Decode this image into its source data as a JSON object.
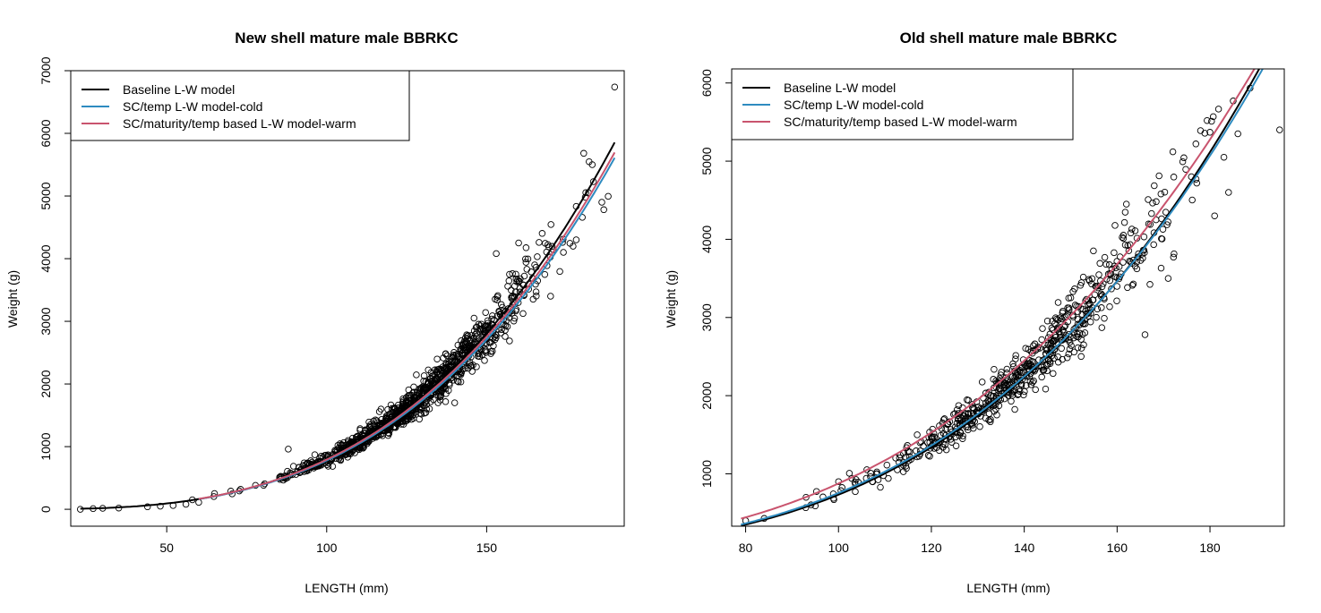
{
  "colors": {
    "baseline": "#000000",
    "cold": "#2E8BC0",
    "warm": "#C9546E",
    "points": "#000000"
  },
  "chart_data": [
    {
      "type": "scatter",
      "title": "New shell mature male BBRKC",
      "xlabel": "LENGTH (mm)",
      "ylabel": "Weight (g)",
      "xlim": [
        20,
        193
      ],
      "ylim": [
        -270,
        7000
      ],
      "xticks": [
        50,
        100,
        150
      ],
      "yticks": [
        0,
        1000,
        2000,
        3000,
        4000,
        5000,
        6000,
        7000
      ],
      "grid": false,
      "legend_position": "top-left",
      "legend": [
        "Baseline L-W model",
        "SC/temp L-W model-cold",
        "SC/maturity/temp based L-W model-warm"
      ],
      "series": [
        {
          "name": "Baseline L-W model",
          "kind": "line",
          "a": 0.000492,
          "b": 3.105,
          "x_range": [
            23,
            190
          ],
          "color_key": "baseline"
        },
        {
          "name": "SC/temp L-W model-cold",
          "kind": "line",
          "a": 0.000546,
          "b": 3.077,
          "x_range": [
            60,
            190
          ],
          "color_key": "cold"
        },
        {
          "name": "SC/maturity/temp based L-W model-warm",
          "kind": "line",
          "a": 0.000575,
          "b": 3.07,
          "x_range": [
            60,
            190
          ],
          "color_key": "warm"
        }
      ],
      "points": {
        "x_range": [
          23,
          190
        ],
        "center": 128,
        "spread": 20,
        "count": 1100,
        "noise_sd": 0.07,
        "a": 0.000492,
        "b": 3.105,
        "extras": [
          [
            23,
            0
          ],
          [
            27,
            10
          ],
          [
            30,
            15
          ],
          [
            35,
            20
          ],
          [
            44,
            40
          ],
          [
            48,
            50
          ],
          [
            52,
            60
          ],
          [
            56,
            80
          ],
          [
            60,
            110
          ],
          [
            88,
            960
          ],
          [
            190,
            6740
          ],
          [
            183,
            5500
          ],
          [
            178,
            4300
          ],
          [
            186,
            4900
          ],
          [
            174,
            4100
          ],
          [
            170,
            3400
          ],
          [
            165,
            3900
          ],
          [
            140,
            1700
          ],
          [
            153,
            4080
          ],
          [
            160,
            4250
          ]
        ]
      }
    },
    {
      "type": "scatter",
      "title": "Old shell mature male BBRKC",
      "xlabel": "LENGTH (mm)",
      "ylabel": "Weight (g)",
      "xlim": [
        77,
        196
      ],
      "ylim": [
        330,
        6180
      ],
      "xticks": [
        80,
        100,
        120,
        140,
        160,
        180
      ],
      "yticks": [
        1000,
        2000,
        3000,
        4000,
        5000,
        6000
      ],
      "grid": false,
      "legend_position": "top-left",
      "legend": [
        "Baseline L-W model",
        "SC/temp L-W model-cold",
        "SC/maturity/temp based L-W model-warm"
      ],
      "series": [
        {
          "name": "Baseline L-W model",
          "kind": "line",
          "a": 0.00018,
          "b": 3.305,
          "x_range": [
            79,
            196
          ],
          "color_key": "baseline"
        },
        {
          "name": "SC/temp L-W model-cold",
          "kind": "line",
          "a": 0.00025,
          "b": 3.24,
          "x_range": [
            79,
            196
          ],
          "color_key": "cold"
        },
        {
          "name": "SC/maturity/temp based L-W model-warm",
          "kind": "line",
          "a": 0.00068,
          "b": 3.055,
          "x_range": [
            79,
            196
          ],
          "color_key": "warm"
        }
      ],
      "points": {
        "x_range": [
          79,
          195
        ],
        "center": 140,
        "spread": 17,
        "count": 620,
        "noise_sd": 0.07,
        "a": 0.00021,
        "b": 3.28,
        "extras": [
          [
            80,
            400
          ],
          [
            84,
            430
          ],
          [
            93,
            700
          ],
          [
            95,
            590
          ],
          [
            100,
            900
          ],
          [
            99,
            670
          ],
          [
            166,
            2780
          ],
          [
            172,
            5120
          ],
          [
            180,
            5370
          ],
          [
            183,
            5050
          ],
          [
            185,
            5770
          ],
          [
            195,
            5400
          ],
          [
            181,
            4300
          ],
          [
            184,
            4600
          ],
          [
            176,
            4800
          ],
          [
            186,
            5350
          ],
          [
            162,
            4450
          ],
          [
            171,
            3500
          ]
        ]
      }
    }
  ]
}
